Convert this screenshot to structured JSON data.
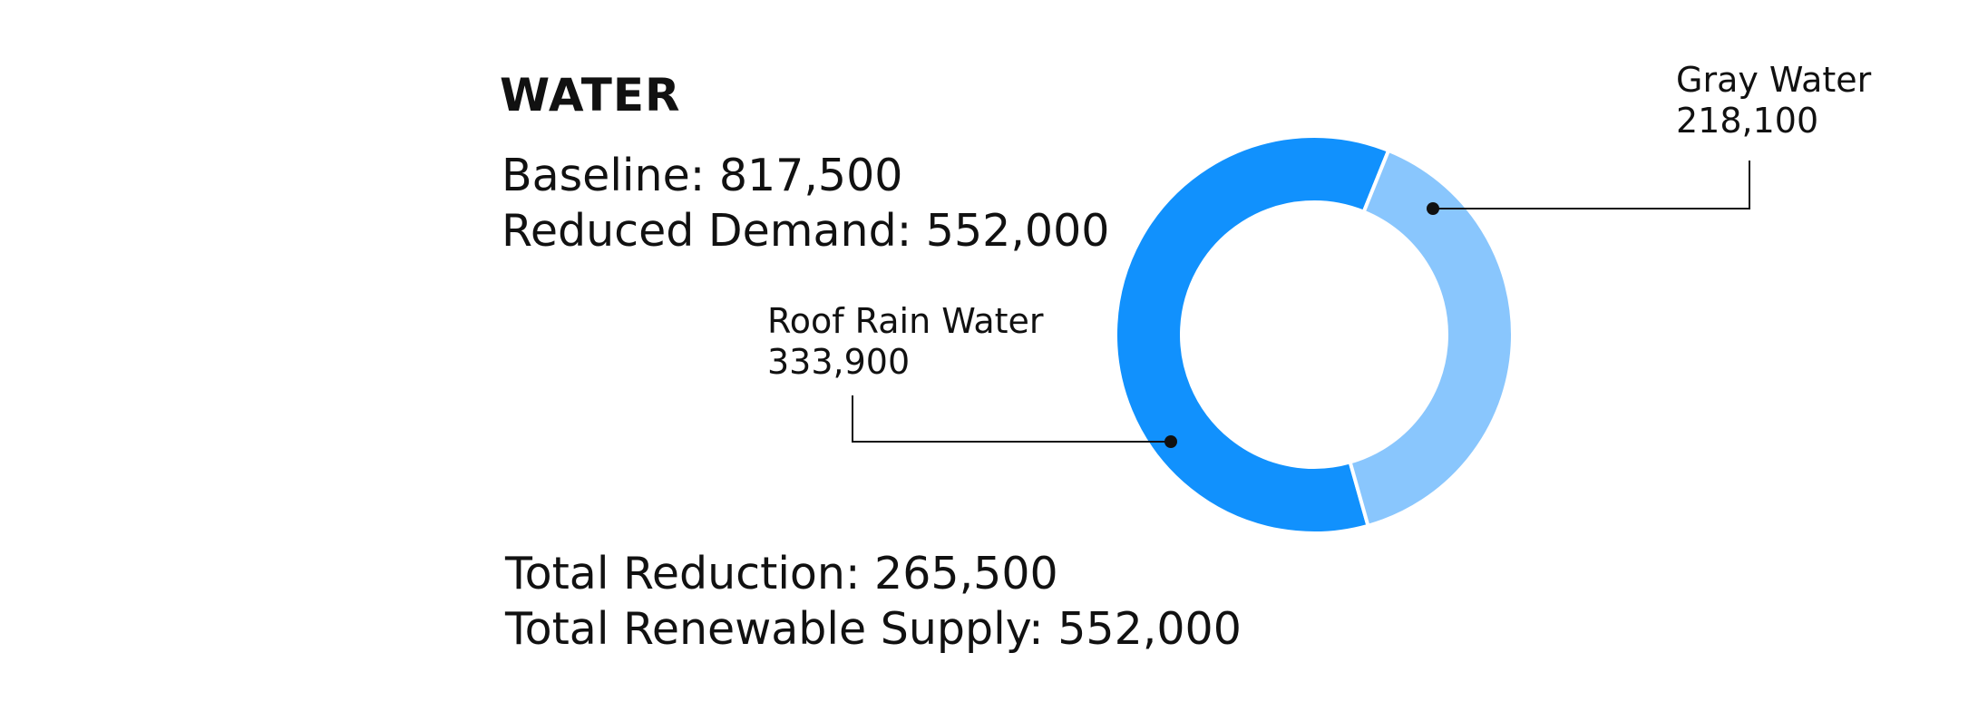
{
  "title": "WATER",
  "stats": {
    "baseline": "Baseline: 817,500",
    "reduced_demand": "Reduced Demand: 552,000",
    "total_reduction": "Total Reduction: 265,500",
    "total_renewable_supply": "Total Renewable Supply: 552,000"
  },
  "chart_data": {
    "type": "pie",
    "variant": "donut",
    "series": [
      {
        "name": "Roof Rain Water",
        "value": 333900,
        "value_label": "333,900",
        "color": "#1191FD"
      },
      {
        "name": "Gray Water",
        "value": 218100,
        "value_label": "218,100",
        "color": "#89C6FD"
      }
    ],
    "start_angle_deg": 22,
    "direction": "clockwise",
    "colors": {
      "separator": "#ffffff",
      "leader": "#111111"
    }
  }
}
